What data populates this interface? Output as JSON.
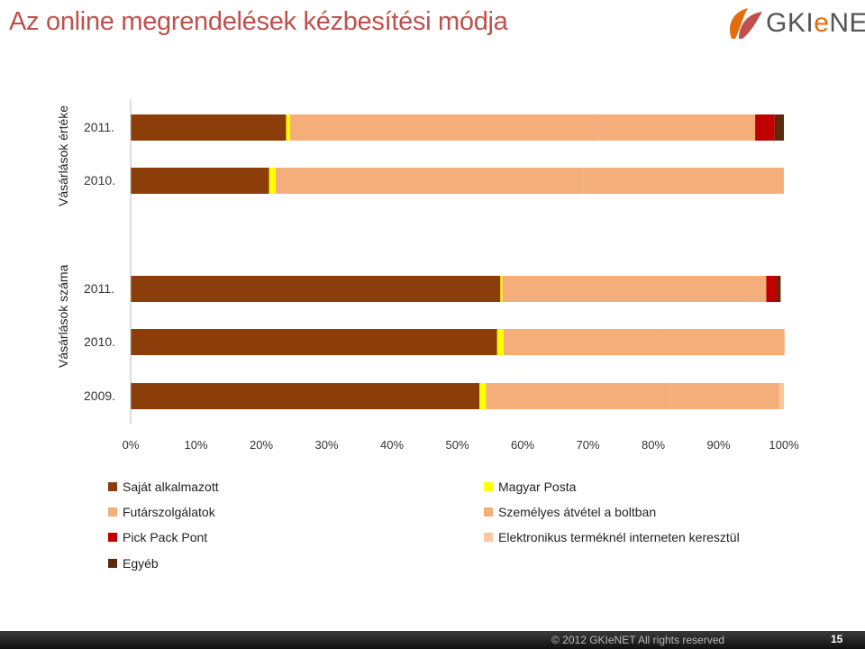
{
  "slide": {
    "title": "Az online megrendelések kézbesítési módja",
    "page_number": "15"
  },
  "logo": {
    "text_prefix": "GKI",
    "text_e": "e",
    "text_suffix": "NET",
    "colors": [
      "#e46c0a",
      "#c0504d"
    ]
  },
  "footer": {
    "text": "© 2012 GKIeNET All rights reserved"
  },
  "chart_data": {
    "type": "bar",
    "orientation": "horizontal",
    "stacked": "percent",
    "xlim": [
      0,
      100
    ],
    "xticks": [
      "0%",
      "10%",
      "20%",
      "30%",
      "40%",
      "50%",
      "60%",
      "70%",
      "80%",
      "90%",
      "100%"
    ],
    "groups": [
      {
        "label": "Vásárlások értéke",
        "categories": [
          "2011.",
          "2010."
        ]
      },
      {
        "label": "Vásárlások száma",
        "categories": [
          "2011.",
          "2010.",
          "2009."
        ]
      }
    ],
    "series": [
      {
        "name": "Saját alkalmazott",
        "color": "#8B3E0A",
        "values": [
          23.8,
          21.2,
          56.6,
          56.1,
          53.4
        ]
      },
      {
        "name": "Magyar Posta",
        "color": "#FFFF00",
        "values": [
          0.6,
          1.0,
          0.3,
          1.0,
          1.0
        ]
      },
      {
        "name": "Futárszolgálatok",
        "color": "#F4AE7A",
        "values": [
          47.2,
          47.0,
          22.0,
          24.0,
          28.0
        ]
      },
      {
        "name": "Személyes átvétel a boltban",
        "color": "#F4AE7A",
        "values": [
          24.0,
          30.8,
          18.4,
          19.0,
          16.9
        ]
      },
      {
        "name": "Elektronikus terméknél interneten keresztül",
        "color": "#F8C9A0",
        "values": [
          0,
          0,
          0,
          0,
          0.7
        ]
      },
      {
        "name": "Pick Pack Pont",
        "color": "#C00000",
        "values": [
          3.0,
          0,
          1.6,
          0,
          0
        ]
      },
      {
        "name": "Egyéb",
        "color": "#5A2A0A",
        "values": [
          1.4,
          0,
          0.6,
          0,
          0
        ]
      }
    ],
    "legend": {
      "placement": "bottom",
      "left_column": [
        "Saját alkalmazott",
        "Futárszolgálatok",
        "Pick Pack Pont",
        "Egyéb"
      ],
      "right_column": [
        "Magyar Posta",
        "Személyes átvétel a boltban",
        "Elektronikus terméknél interneten keresztül"
      ]
    },
    "grid": false
  }
}
